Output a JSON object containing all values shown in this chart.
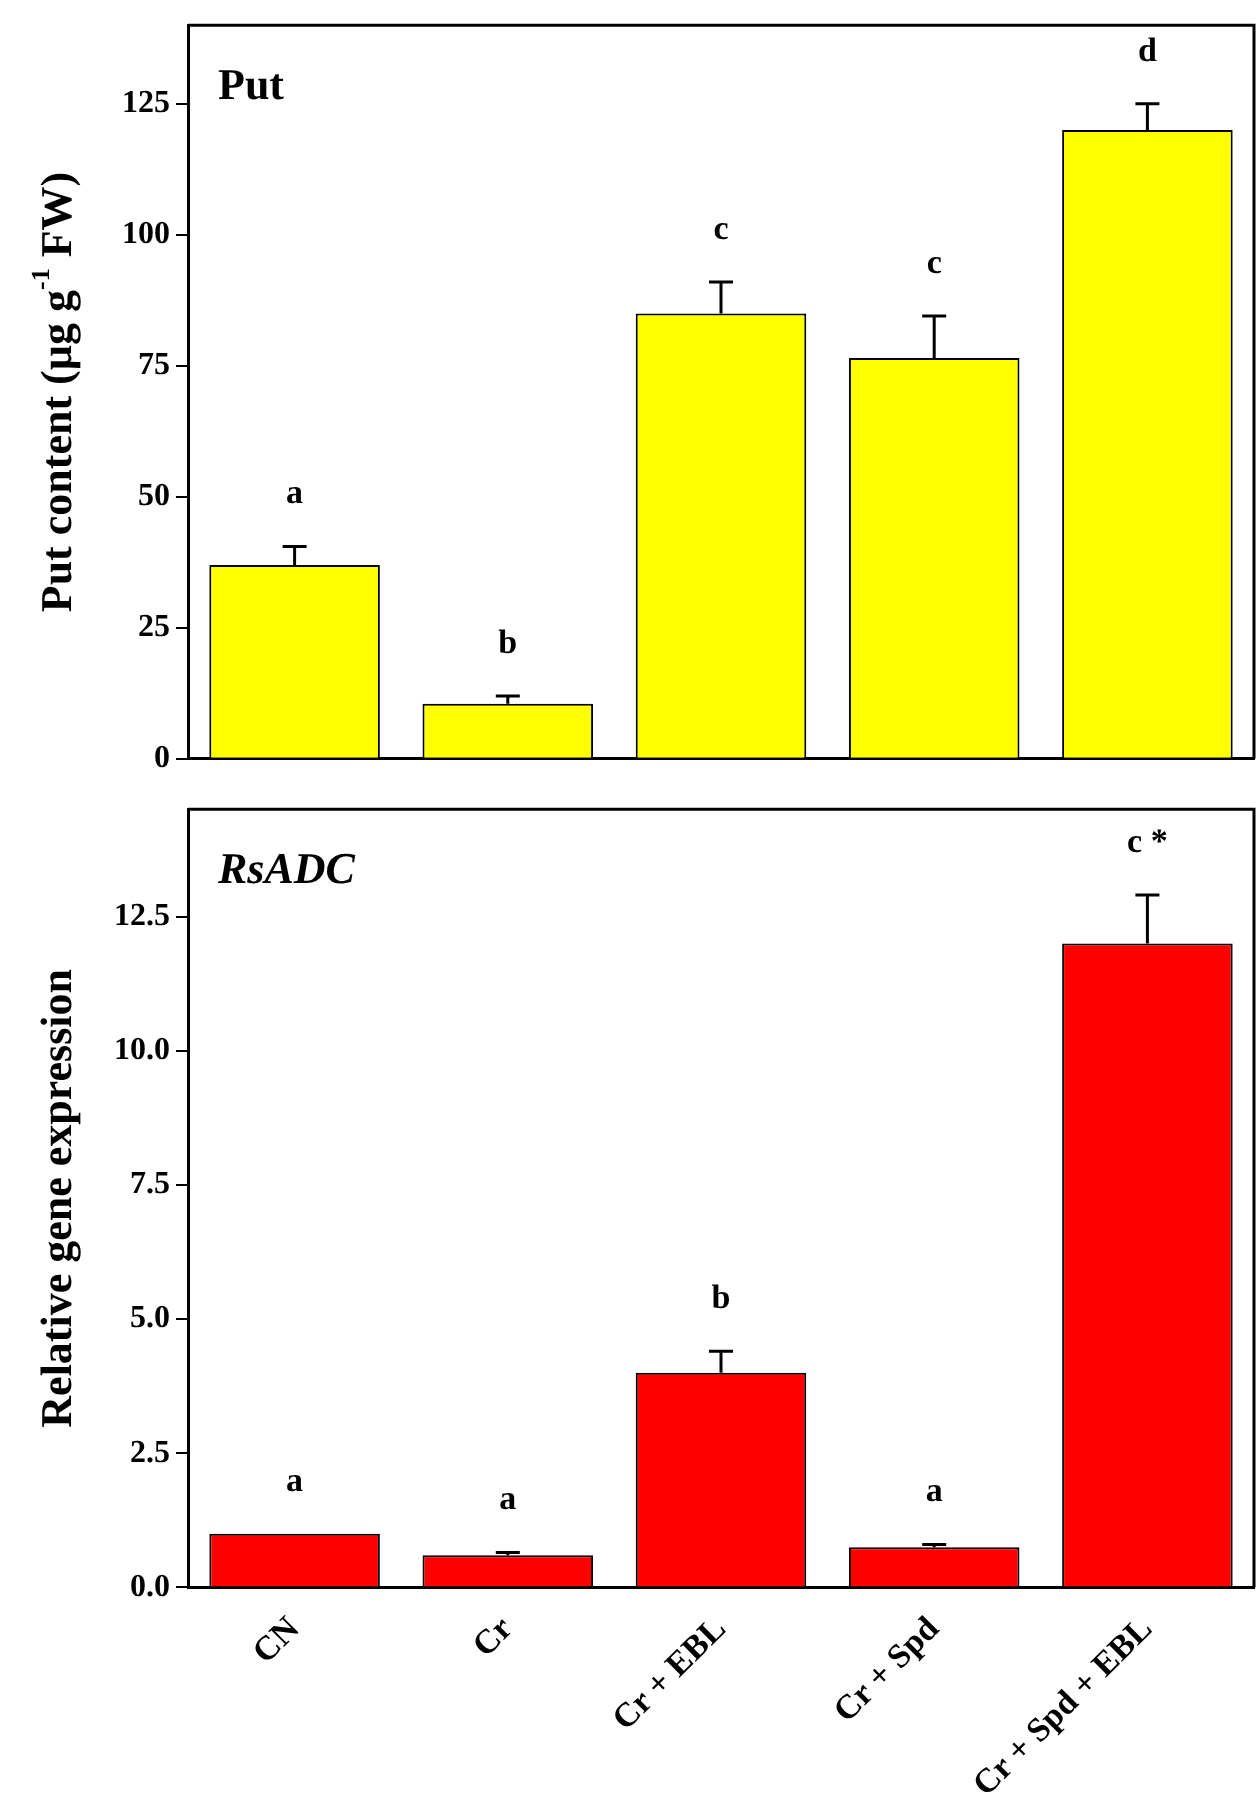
{
  "chart_data": [
    {
      "type": "bar",
      "title": "Put",
      "ylabel": "Put content (µg g$^{-1}$ FW)",
      "categories": [
        null,
        null,
        null,
        null,
        null
      ],
      "values": [
        37,
        10.5,
        85,
        76.5,
        120
      ],
      "errors": [
        [
          37,
          40.5
        ],
        [
          10.5,
          12
        ],
        [
          85,
          91
        ],
        [
          76.5,
          84.5
        ],
        [
          120,
          125
        ]
      ],
      "color": "#ffff00",
      "ylim": [
        0,
        140
      ],
      "yticks": [
        0,
        25,
        50,
        75,
        100,
        125
      ],
      "grid": false,
      "tick_labels": "y",
      "annotations": [
        "a",
        "b",
        "c",
        "c",
        "d"
      ]
    },
    {
      "type": "bar",
      "title": "RsADC",
      "ylabel": "Relative gene expression",
      "categories": [
        "CN",
        "Cr",
        "Cr + EBL",
        "Cr + Spd",
        "Cr + Spd + EBL"
      ],
      "values": [
        1,
        0.6,
        4,
        0.75,
        12
      ],
      "errors": [
        null,
        [
          0.6,
          0.65
        ],
        [
          4,
          4.4
        ],
        [
          0.75,
          0.8
        ],
        [
          12,
          12.9
        ]
      ],
      "color": "#ff0000",
      "ylim": [
        0,
        14.5
      ],
      "yticks": [
        {
          "value": 0,
          "label": "0.0"
        },
        {
          "value": 2.5,
          "label": "2.5"
        },
        {
          "value": 5,
          "label": "5.0"
        },
        {
          "value": 7.5,
          "label": "7.5"
        },
        {
          "value": 10,
          "label": "10.0"
        },
        {
          "value": 12.5,
          "label": "12.5"
        }
      ],
      "grid": false,
      "annotations": [
        "a",
        "a",
        "b",
        "a",
        "c *"
      ]
    }
  ]
}
